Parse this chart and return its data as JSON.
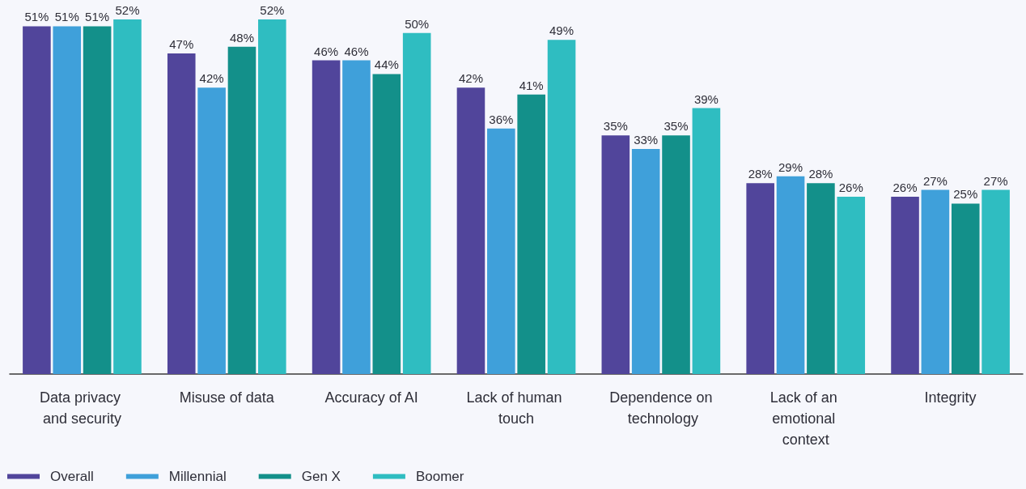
{
  "chart_data": {
    "type": "bar",
    "categories": [
      "Data privacy and security",
      "Misuse of data",
      "Accuracy of AI",
      "Lack of human touch",
      "Dependence on technology",
      "Lack of an emotional context",
      "Integrity"
    ],
    "series": [
      {
        "name": "Overall",
        "color": "#51459b",
        "values": [
          51,
          47,
          46,
          42,
          35,
          28,
          26
        ],
        "value_labels": [
          "51%",
          "47%",
          "46%",
          "42%",
          "35%",
          "28%",
          "26%"
        ]
      },
      {
        "name": "Millennial",
        "color": "#3fa0da",
        "values": [
          51,
          42,
          46,
          36,
          33,
          29,
          27
        ],
        "value_labels": [
          "51%",
          "42%",
          "46%",
          "36%",
          "33%",
          "29%",
          "27%"
        ]
      },
      {
        "name": "Gen X",
        "color": "#13908a",
        "values": [
          51,
          48,
          44,
          41,
          35,
          28,
          25
        ],
        "value_labels": [
          "51%",
          "48%",
          "44%",
          "41%",
          "35%",
          "28%",
          "25%"
        ]
      },
      {
        "name": "Boomer",
        "color": "#2fbdc1",
        "values": [
          52,
          52,
          50,
          49,
          39,
          26,
          27
        ],
        "value_labels": [
          "52%",
          "52%",
          "50%",
          "49%",
          "39%",
          "26%",
          "27%"
        ]
      }
    ],
    "legend": "bottom left"
  }
}
